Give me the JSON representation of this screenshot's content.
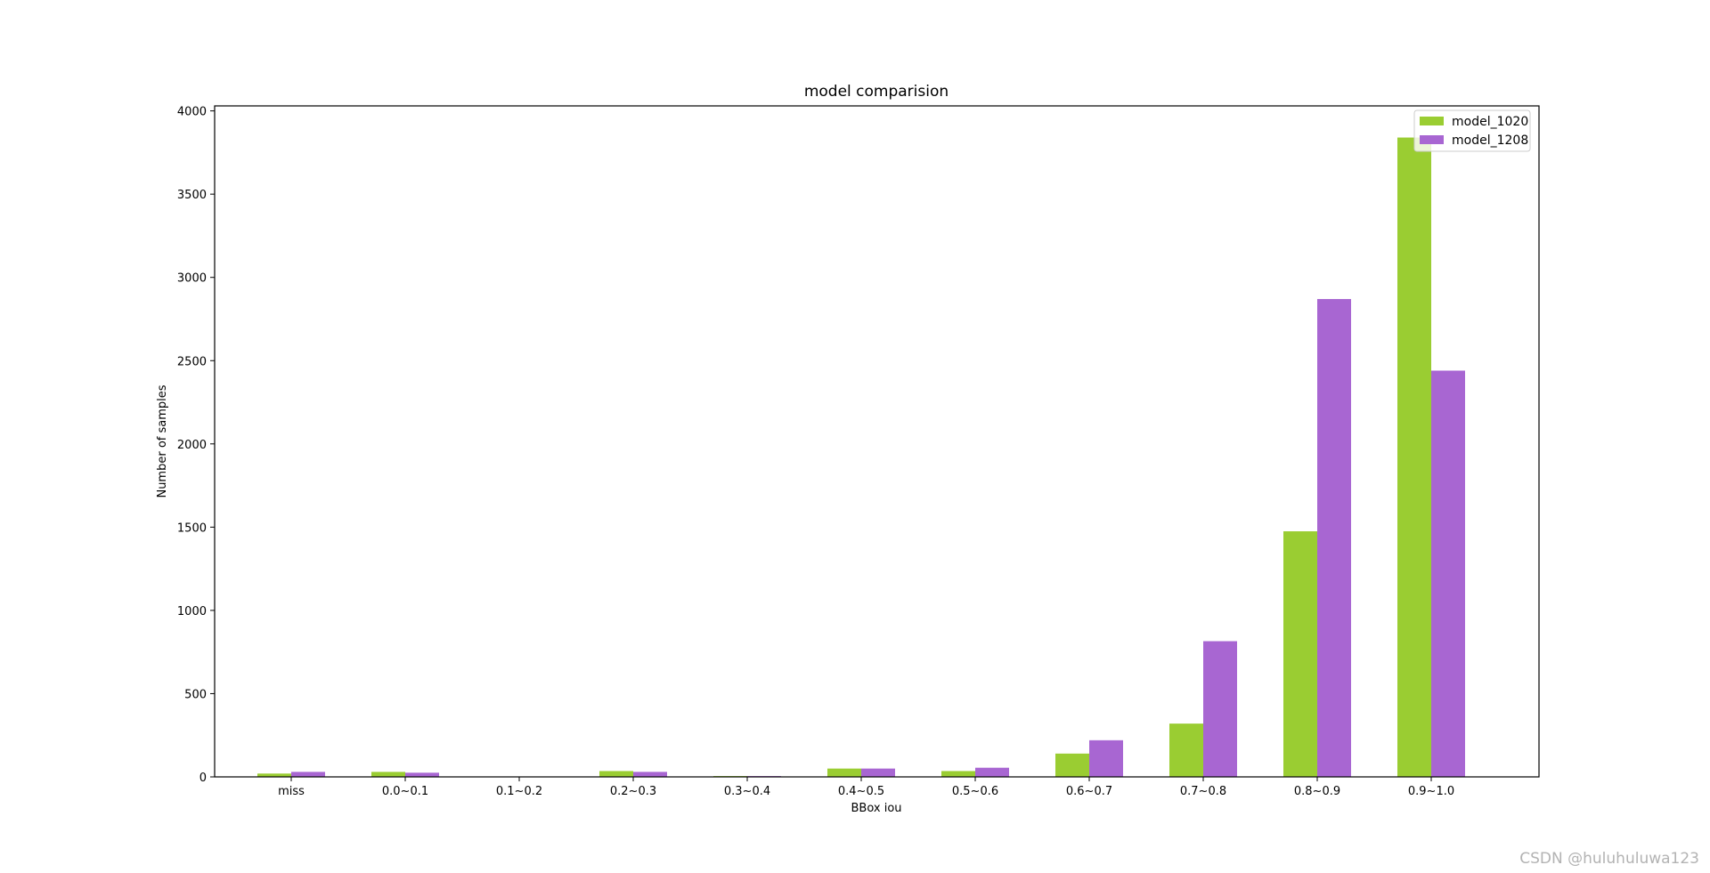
{
  "chart_data": {
    "type": "bar",
    "title": "model comparision",
    "xlabel": "BBox iou",
    "ylabel": "Number of samples",
    "categories": [
      "miss",
      "0.0~0.1",
      "0.1~0.2",
      "0.2~0.3",
      "0.3~0.4",
      "0.4~0.5",
      "0.5~0.6",
      "0.6~0.7",
      "0.7~0.8",
      "0.8~0.9",
      "0.9~1.0"
    ],
    "series": [
      {
        "name": "model_1020",
        "color": "#9acd32",
        "values": [
          20,
          30,
          0,
          35,
          5,
          50,
          35,
          140,
          320,
          1475,
          3840
        ]
      },
      {
        "name": "model_1208",
        "color": "#a866d2",
        "values": [
          30,
          25,
          0,
          30,
          5,
          50,
          55,
          220,
          815,
          2870,
          2440
        ]
      }
    ],
    "ylim": [
      0,
      4030
    ],
    "yticks": [
      0,
      500,
      1000,
      1500,
      2000,
      2500,
      3000,
      3500,
      4000
    ],
    "legend_position": "top-right",
    "grid": false
  },
  "watermark": "CSDN @huluhuluwa123"
}
